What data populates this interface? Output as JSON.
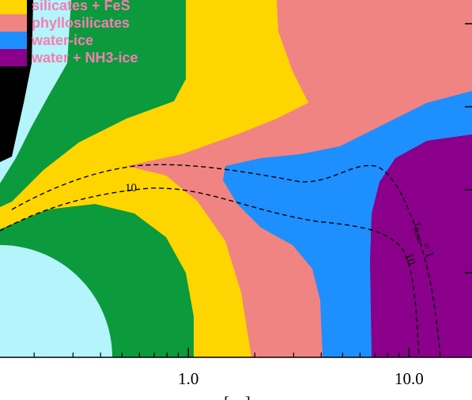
{
  "chart_data": {
    "type": "region",
    "series": [
      {
        "name": "silicates + FeS",
        "color": "#ffd500"
      },
      {
        "name": "phyllosilicates",
        "color": "#f08482"
      },
      {
        "name": "water-ice",
        "color": "#1e8fff"
      },
      {
        "name": "water + NH3-ice",
        "color": "#8a008a"
      }
    ],
    "extra_region_colors": [
      "#000000",
      "#b4f4fb",
      "#0b9a3c"
    ],
    "legend_text_color": "#f47fb2",
    "x_log_scale": true,
    "xlim": [
      0.14,
      19.3
    ],
    "xticks": [
      {
        "value": 1,
        "label": "1.0"
      },
      {
        "value": 10,
        "label": "10.0"
      }
    ],
    "xminorticks": [
      0.2,
      0.3,
      0.4,
      0.5,
      0.6,
      0.7,
      0.8,
      0.9,
      2,
      3,
      4,
      5,
      6,
      7,
      8,
      9
    ],
    "xlabel": "[au]",
    "annotations": [
      "10",
      "10"
    ],
    "tau_label": {
      "symbol": "τ",
      "subscript": "Ross",
      "rest": "= 1"
    }
  }
}
